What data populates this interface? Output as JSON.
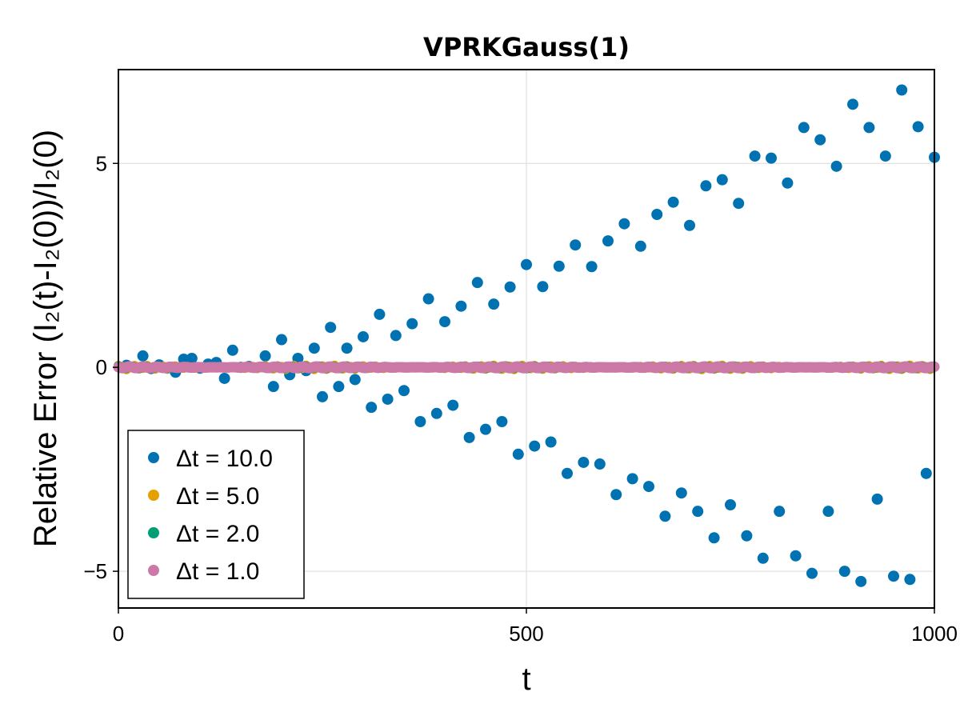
{
  "chart_data": {
    "type": "scatter",
    "title": "VPRKGauss(1)",
    "xlabel": "t",
    "ylabel": "Relative Error (I₂(t)-I₂(0))/I₂(0)",
    "xlim": [
      0,
      1000
    ],
    "ylim": [
      -5.9,
      7.3
    ],
    "xticks": [
      0,
      500,
      1000
    ],
    "xtick_labels": [
      "0",
      "500",
      "1000"
    ],
    "yticks": [
      -5,
      0,
      5
    ],
    "ytick_labels": [
      "−5",
      "0",
      "5"
    ],
    "grid": true,
    "legend_position": "bottom-left",
    "series": [
      {
        "name": "Δt = 10.0",
        "color": "#0072b2",
        "points": [
          [
            10,
            0.05
          ],
          [
            30,
            0.28
          ],
          [
            40,
            -0.03
          ],
          [
            50,
            0.06
          ],
          [
            60,
            -0.02
          ],
          [
            70,
            -0.12
          ],
          [
            80,
            0.2
          ],
          [
            90,
            0.22
          ],
          [
            100,
            -0.02
          ],
          [
            110,
            0.08
          ],
          [
            120,
            0.12
          ],
          [
            130,
            -0.27
          ],
          [
            140,
            0.42
          ],
          [
            150,
            0.0
          ],
          [
            160,
            0.02
          ],
          [
            180,
            0.28
          ],
          [
            190,
            -0.47
          ],
          [
            200,
            0.68
          ],
          [
            210,
            -0.18
          ],
          [
            220,
            0.22
          ],
          [
            230,
            -0.08
          ],
          [
            240,
            0.47
          ],
          [
            250,
            -0.72
          ],
          [
            260,
            0.98
          ],
          [
            270,
            -0.47
          ],
          [
            280,
            0.47
          ],
          [
            290,
            -0.3
          ],
          [
            300,
            0.75
          ],
          [
            310,
            -0.98
          ],
          [
            320,
            1.3
          ],
          [
            330,
            -0.78
          ],
          [
            340,
            0.78
          ],
          [
            350,
            -0.57
          ],
          [
            360,
            1.07
          ],
          [
            370,
            -1.33
          ],
          [
            380,
            1.68
          ],
          [
            390,
            -1.13
          ],
          [
            400,
            1.12
          ],
          [
            410,
            -0.93
          ],
          [
            420,
            1.5
          ],
          [
            430,
            -1.72
          ],
          [
            440,
            2.08
          ],
          [
            450,
            -1.52
          ],
          [
            460,
            1.55
          ],
          [
            470,
            -1.33
          ],
          [
            480,
            1.97
          ],
          [
            490,
            -2.13
          ],
          [
            500,
            2.52
          ],
          [
            510,
            -1.93
          ],
          [
            520,
            1.98
          ],
          [
            530,
            -1.83
          ],
          [
            540,
            2.48
          ],
          [
            550,
            -2.6
          ],
          [
            560,
            3.0
          ],
          [
            570,
            -2.33
          ],
          [
            580,
            2.47
          ],
          [
            590,
            -2.37
          ],
          [
            600,
            3.1
          ],
          [
            610,
            -3.12
          ],
          [
            620,
            3.52
          ],
          [
            630,
            -2.73
          ],
          [
            640,
            2.97
          ],
          [
            650,
            -2.92
          ],
          [
            660,
            3.75
          ],
          [
            670,
            -3.65
          ],
          [
            680,
            4.05
          ],
          [
            690,
            -3.08
          ],
          [
            700,
            3.48
          ],
          [
            710,
            -3.53
          ],
          [
            720,
            4.45
          ],
          [
            730,
            -4.18
          ],
          [
            740,
            4.6
          ],
          [
            750,
            -3.37
          ],
          [
            760,
            4.02
          ],
          [
            770,
            -4.13
          ],
          [
            780,
            5.18
          ],
          [
            790,
            -4.68
          ],
          [
            800,
            5.13
          ],
          [
            810,
            -3.53
          ],
          [
            820,
            4.52
          ],
          [
            830,
            -4.62
          ],
          [
            840,
            5.88
          ],
          [
            850,
            -5.05
          ],
          [
            860,
            5.58
          ],
          [
            870,
            -3.53
          ],
          [
            880,
            4.93
          ],
          [
            890,
            -5.0
          ],
          [
            900,
            6.45
          ],
          [
            910,
            -5.25
          ],
          [
            920,
            5.88
          ],
          [
            930,
            -3.23
          ],
          [
            940,
            5.18
          ],
          [
            950,
            -5.12
          ],
          [
            960,
            6.8
          ],
          [
            970,
            -5.2
          ],
          [
            980,
            5.9
          ],
          [
            990,
            -2.6
          ],
          [
            1000,
            5.15
          ]
        ]
      },
      {
        "name": "Δt = 5.0",
        "color": "#e69f00",
        "amplitude": 0.05
      },
      {
        "name": "Δt = 2.0",
        "color": "#009e73",
        "amplitude": 0.03
      },
      {
        "name": "Δt = 1.0",
        "color": "#cc79a7",
        "amplitude": 0.02
      }
    ]
  }
}
